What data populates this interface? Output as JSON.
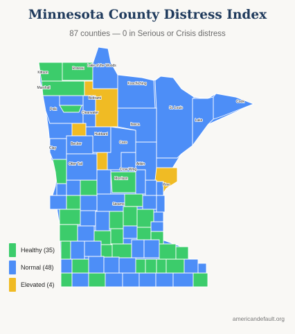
{
  "header": {
    "title": "Minnesota County Distress Index",
    "subtitle": "87 counties — 0 in Serious or Crisis distress"
  },
  "colors": {
    "healthy": "#3ccc6b",
    "normal": "#4d8ef7",
    "elevated": "#f0bb24",
    "border": "#ffffff"
  },
  "legend": [
    {
      "label": "Healthy (35)",
      "color": "#3ccc6b"
    },
    {
      "label": "Normal (48)",
      "color": "#4d8ef7"
    },
    {
      "label": "Elevated (4)",
      "color": "#f0bb24"
    }
  ],
  "counties": [
    {
      "name": "Kittson",
      "status": "healthy"
    },
    {
      "name": "Roseau",
      "status": "healthy"
    },
    {
      "name": "Lake of the Woods",
      "status": "normal"
    },
    {
      "name": "Marshall",
      "status": "healthy"
    },
    {
      "name": "Koochiching",
      "status": "normal"
    },
    {
      "name": "Beltrami",
      "status": "elevated"
    },
    {
      "name": "Polk",
      "status": "normal"
    },
    {
      "name": "Clearwater",
      "status": "normal"
    },
    {
      "name": "St. Louis",
      "status": "normal"
    },
    {
      "name": "Cook",
      "status": "normal"
    },
    {
      "name": "Lake",
      "status": "normal"
    },
    {
      "name": "Itasca",
      "status": "normal"
    },
    {
      "name": "Hubbard",
      "status": "normal"
    },
    {
      "name": "Becker",
      "status": "normal"
    },
    {
      "name": "Clay",
      "status": "normal"
    },
    {
      "name": "Cass",
      "status": "normal"
    },
    {
      "name": "Otter Tail",
      "status": "normal"
    },
    {
      "name": "Crow Wing",
      "status": "normal"
    },
    {
      "name": "Aitkin",
      "status": "normal"
    },
    {
      "name": "Morrison",
      "status": "healthy"
    },
    {
      "name": "Pine",
      "status": "elevated"
    },
    {
      "name": "Stearns",
      "status": "normal"
    }
  ],
  "footer": {
    "source": "americandefault.org"
  }
}
